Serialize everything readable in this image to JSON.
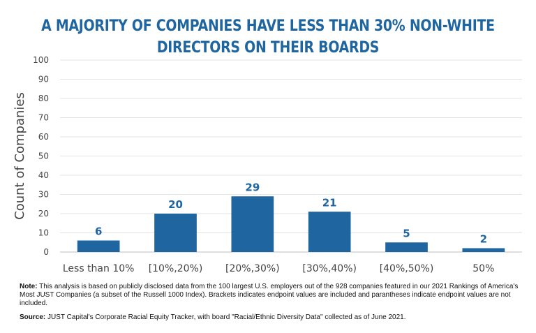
{
  "chart_data": {
    "type": "bar",
    "title_lines": [
      "A MAJORITY OF COMPANIES HAVE LESS THAN 30% NON-WHITE",
      "DIRECTORS ON THEIR BOARDS"
    ],
    "categories": [
      "Less than 10%",
      "[10%,20%)",
      "[20%,30%)",
      "[30%,40%)",
      "[40%,50%)",
      "50%"
    ],
    "values": [
      6,
      20,
      29,
      21,
      5,
      2
    ],
    "data_labels": [
      "6",
      "20",
      "29",
      "21",
      "5",
      "2"
    ],
    "xlabel": "",
    "ylabel": "Count of Companies",
    "ylim": [
      0,
      100
    ],
    "yticks": [
      0,
      10,
      20,
      30,
      40,
      50,
      60,
      70,
      80,
      90,
      100
    ],
    "grid": true,
    "bar_color": "#1f65a0",
    "title_color": "#1f65a0"
  },
  "footnotes": {
    "note_label": "Note:",
    "note_text": " This analysis is based on publicly disclosed data from the 100 largest U.S. employers out of the 928 companies featured in our 2021 Rankings of America's Most JUST Companies (a subset of the Russell 1000 Index). Brackets indicates endpoint values are included and parantheses indicate endpoint values are not included.",
    "source_label": "Source:",
    "source_text": " JUST Capital's Corporate Racial Equity Tracker, with board \"Racial/Ethnic Diversity Data\" collected as of June 2021."
  }
}
